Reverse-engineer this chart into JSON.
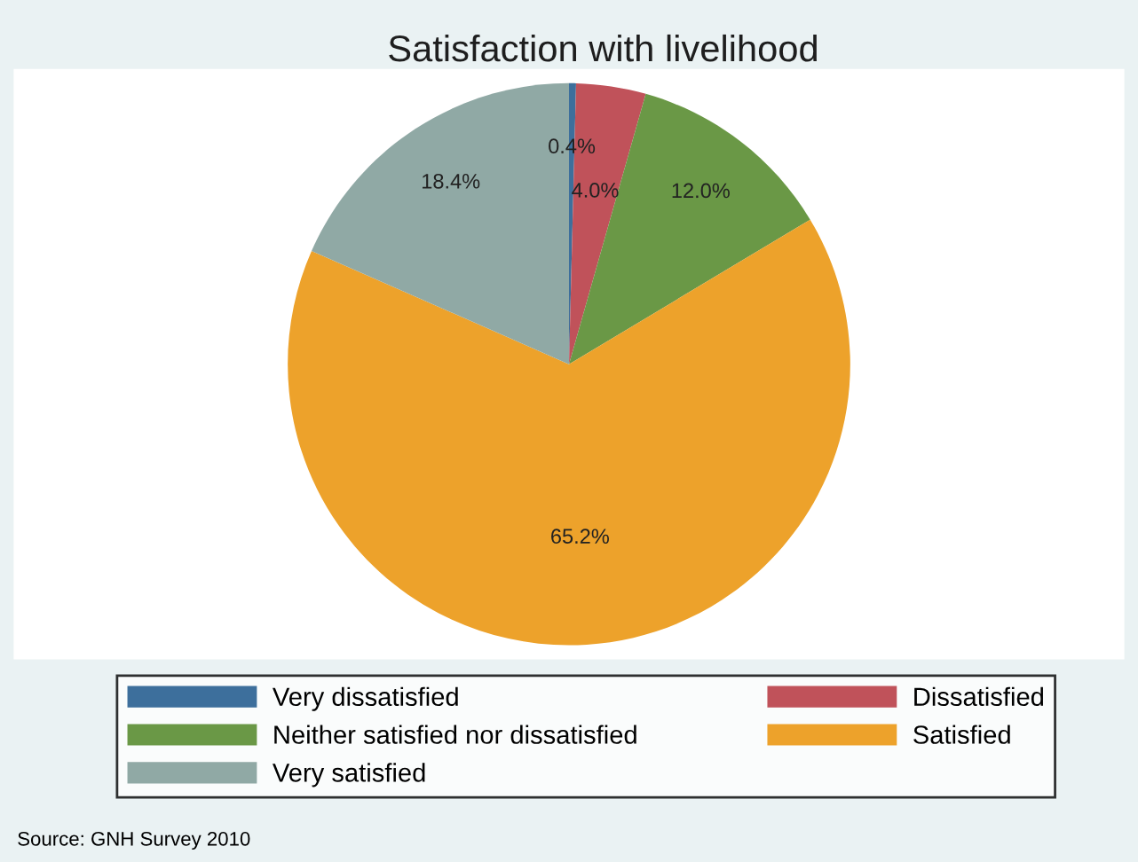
{
  "chart_data": {
    "type": "pie",
    "title": "Satisfaction with livelihood",
    "categories": [
      "Very dissatisfied",
      "Dissatisfied",
      "Neither satisfied nor dissatisfied",
      "Satisfied",
      "Very satisfied"
    ],
    "values": [
      0.4,
      4.0,
      12.0,
      65.2,
      18.4
    ],
    "value_labels": [
      "0.4%",
      "4.0%",
      "12.0%",
      "65.2%",
      "18.4%"
    ],
    "colors": [
      "#3d6f9c",
      "#c0525a",
      "#6a9846",
      "#eda22b",
      "#90a9a5"
    ],
    "legend": "bottom",
    "annotations": [
      "Source: GNH Survey 2010"
    ]
  }
}
